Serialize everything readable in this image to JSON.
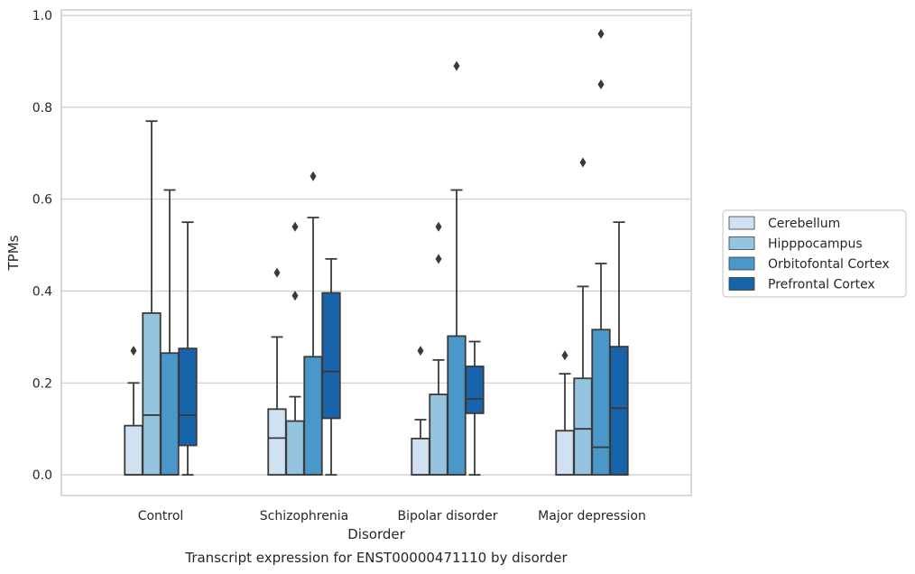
{
  "chart_data": {
    "type": "box",
    "title": "",
    "caption": "Transcript expression for ENST00000471110 by disorder",
    "xlabel": "Disorder",
    "ylabel": "TPMs",
    "ylim": [
      -0.045,
      1.012
    ],
    "yticks": [
      "0.0",
      "0.2",
      "0.4",
      "0.6",
      "0.8",
      "1.0"
    ],
    "ytick_values": [
      0.0,
      0.2,
      0.4,
      0.6,
      0.8,
      1.0
    ],
    "grid": "horizontal",
    "legend_position": "right",
    "categories": [
      "Control",
      "Schizophrenia",
      "Bipolar disorder",
      "Major depression"
    ],
    "series": [
      {
        "name": "Cerebellum",
        "color": "#d0e1f2",
        "boxes": [
          {
            "whisker_low": 0.0,
            "q1": 0.0,
            "median": 0.0,
            "q3": 0.107,
            "whisker_high": 0.2,
            "outliers": [
              0.27
            ]
          },
          {
            "whisker_low": 0.0,
            "q1": 0.0,
            "median": 0.08,
            "q3": 0.143,
            "whisker_high": 0.3,
            "outliers": [
              0.44
            ]
          },
          {
            "whisker_low": 0.0,
            "q1": 0.0,
            "median": 0.0,
            "q3": 0.079,
            "whisker_high": 0.12,
            "outliers": [
              0.27
            ]
          },
          {
            "whisker_low": 0.0,
            "q1": 0.0,
            "median": 0.0,
            "q3": 0.096,
            "whisker_high": 0.22,
            "outliers": [
              0.26
            ]
          }
        ]
      },
      {
        "name": "Hipppocampus",
        "color": "#94c4df",
        "boxes": [
          {
            "whisker_low": 0.0,
            "q1": 0.0,
            "median": 0.13,
            "q3": 0.352,
            "whisker_high": 0.77,
            "outliers": []
          },
          {
            "whisker_low": 0.0,
            "q1": 0.0,
            "median": 0.0,
            "q3": 0.117,
            "whisker_high": 0.17,
            "outliers": [
              0.39,
              0.54
            ]
          },
          {
            "whisker_low": 0.0,
            "q1": 0.0,
            "median": 0.0,
            "q3": 0.175,
            "whisker_high": 0.25,
            "outliers": [
              0.47,
              0.54
            ]
          },
          {
            "whisker_low": 0.0,
            "q1": 0.0,
            "median": 0.1,
            "q3": 0.21,
            "whisker_high": 0.41,
            "outliers": [
              0.68
            ]
          }
        ]
      },
      {
        "name": "Orbitofontal Cortex",
        "color": "#4a98c9",
        "boxes": [
          {
            "whisker_low": 0.0,
            "q1": 0.0,
            "median": 0.0,
            "q3": 0.265,
            "whisker_high": 0.62,
            "outliers": []
          },
          {
            "whisker_low": 0.0,
            "q1": 0.0,
            "median": 0.0,
            "q3": 0.257,
            "whisker_high": 0.56,
            "outliers": [
              0.65
            ]
          },
          {
            "whisker_low": 0.0,
            "q1": 0.0,
            "median": 0.0,
            "q3": 0.302,
            "whisker_high": 0.62,
            "outliers": [
              0.89
            ]
          },
          {
            "whisker_low": 0.0,
            "q1": 0.0,
            "median": 0.06,
            "q3": 0.316,
            "whisker_high": 0.46,
            "outliers": [
              0.85,
              0.96
            ]
          }
        ]
      },
      {
        "name": "Prefrontal Cortex",
        "color": "#1764ab",
        "boxes": [
          {
            "whisker_low": 0.0,
            "q1": 0.064,
            "median": 0.13,
            "q3": 0.275,
            "whisker_high": 0.55,
            "outliers": []
          },
          {
            "whisker_low": 0.0,
            "q1": 0.123,
            "median": 0.225,
            "q3": 0.396,
            "whisker_high": 0.47,
            "outliers": []
          },
          {
            "whisker_low": 0.0,
            "q1": 0.134,
            "median": 0.165,
            "q3": 0.236,
            "whisker_high": 0.29,
            "outliers": []
          },
          {
            "whisker_low": 0.0,
            "q1": 0.0,
            "median": 0.145,
            "q3": 0.279,
            "whisker_high": 0.55,
            "outliers": []
          }
        ]
      }
    ],
    "colors": {
      "edge": "#3a3a3a",
      "grid": "#cccccc",
      "spine": "#cccccc",
      "legend_border": "#cccccc"
    }
  }
}
